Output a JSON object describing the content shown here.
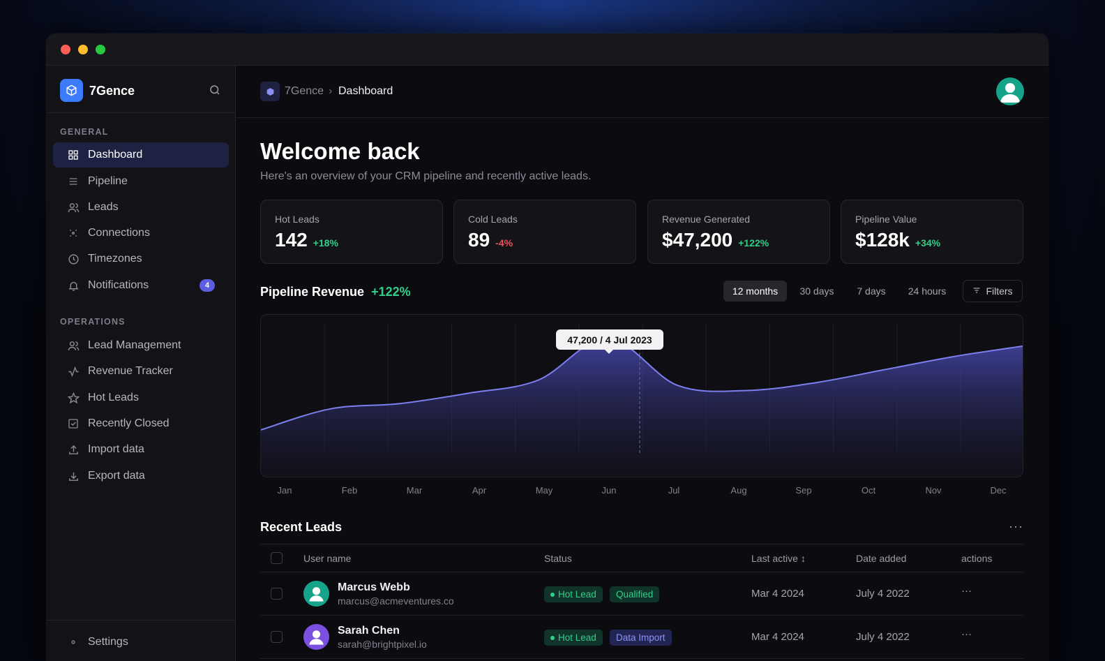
{
  "window": {
    "controls": [
      "close",
      "minimize",
      "zoom"
    ]
  },
  "brand": {
    "name": "7Gence"
  },
  "sidebar": {
    "general_label": "GENERAL",
    "general_items": [
      {
        "label": "Dashboard",
        "icon": "grid-icon",
        "active": true
      },
      {
        "label": "Pipeline",
        "icon": "list-icon"
      },
      {
        "label": "Leads",
        "icon": "users-icon"
      },
      {
        "label": "Connections",
        "icon": "connections-icon"
      },
      {
        "label": "Timezones",
        "icon": "clock-icon"
      },
      {
        "label": "Notifications",
        "icon": "bell-icon",
        "badge": "4"
      }
    ],
    "operations_label": "OPERATIONS",
    "operations_items": [
      {
        "label": "Lead Management",
        "icon": "users-icon"
      },
      {
        "label": "Revenue Tracker",
        "icon": "activity-icon"
      },
      {
        "label": "Hot Leads",
        "icon": "star-icon"
      },
      {
        "label": "Recently Closed",
        "icon": "check-square-icon"
      },
      {
        "label": "Import data",
        "icon": "upload-icon"
      },
      {
        "label": "Export data",
        "icon": "download-icon"
      }
    ],
    "settings_label": "Settings"
  },
  "breadcrumb": {
    "root": "7Gence",
    "separator": "›",
    "current": "Dashboard"
  },
  "header": {
    "title": "Welcome back",
    "subtitle": "Here's an overview of your CRM pipeline and recently active leads."
  },
  "stats": [
    {
      "label": "Hot Leads",
      "value": "142",
      "change": "+18%",
      "trend": "up"
    },
    {
      "label": "Cold Leads",
      "value": "89",
      "change": "-4%",
      "trend": "down"
    },
    {
      "label": "Revenue Generated",
      "value": "$47,200",
      "change": "+122%",
      "trend": "up"
    },
    {
      "label": "Pipeline Value",
      "value": "$128k",
      "change": "+34%",
      "trend": "up"
    }
  ],
  "pipeline": {
    "title": "Pipeline Revenue",
    "change": "+122%",
    "ranges": [
      "12 months",
      "30 days",
      "7 days",
      "24 hours"
    ],
    "active_range": "12 months",
    "filters_label": "Filters",
    "tooltip": "47,200 / 4 Jul 2023"
  },
  "chart_data": {
    "type": "area",
    "categories": [
      "Jan",
      "Feb",
      "Mar",
      "Apr",
      "May",
      "Jun",
      "Jul",
      "Aug",
      "Sep",
      "Oct",
      "Nov",
      "Dec"
    ],
    "values": [
      12,
      20,
      22,
      26,
      31,
      47,
      29,
      27,
      30,
      35,
      40,
      44
    ],
    "highlight": {
      "category": "Jun",
      "label": "47,200 / 4 Jul 2023"
    },
    "colors": {
      "line": "#7b80ee",
      "fill": "#3a3b8f"
    }
  },
  "recent_leads": {
    "title": "Recent Leads",
    "more_label": "···",
    "columns": [
      "User name",
      "Status",
      "Last active ↕",
      "Date added",
      "actions"
    ],
    "rows": [
      {
        "name": "Marcus Webb",
        "email": "marcus@acmeventures.co",
        "status": "Hot Lead",
        "tag": "Qualified",
        "tag_kind": "qual",
        "last_active": "Mar 4 2024",
        "date_added": "July 4 2022",
        "action": "···",
        "avatar_color": "#15a389"
      },
      {
        "name": "Sarah Chen",
        "email": "sarah@brightpixel.io",
        "status": "Hot Lead",
        "tag": "Data Import",
        "tag_kind": "imp",
        "last_active": "Mar 4 2024",
        "date_added": "July 4 2022",
        "action": "···",
        "avatar_color": "#7b4fe0"
      }
    ]
  },
  "colors": {
    "accent": "#5b5ee0",
    "positive": "#2fcf8a",
    "negative": "#f0525a",
    "brand": "#3d7bfd"
  }
}
